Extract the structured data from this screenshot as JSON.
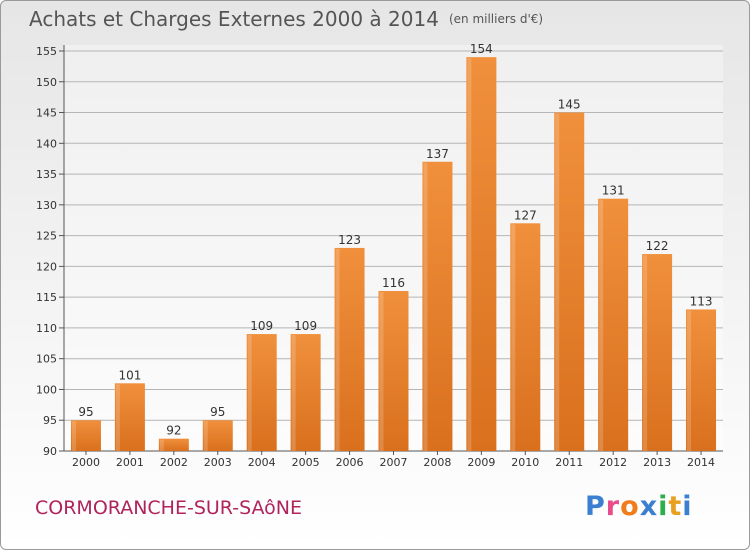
{
  "chart_data": {
    "type": "bar",
    "title": "Achats et Charges Externes 2000 à 2014",
    "subtitle": "(en milliers d'€)",
    "categories": [
      "2000",
      "2001",
      "2002",
      "2003",
      "2004",
      "2005",
      "2006",
      "2007",
      "2008",
      "2009",
      "2010",
      "2011",
      "2012",
      "2013",
      "2014"
    ],
    "values": [
      95,
      101,
      92,
      95,
      109,
      109,
      123,
      116,
      137,
      154,
      127,
      145,
      131,
      122,
      113
    ],
    "ylim": [
      90,
      155
    ],
    "yticks": [
      90,
      95,
      100,
      105,
      110,
      115,
      120,
      125,
      130,
      135,
      140,
      145,
      150,
      155
    ],
    "grid": true,
    "bar_color": "#f0903c",
    "bar_color_dark": "#d9701e"
  },
  "footer": {
    "commune": "CORMORANCHE-SUR-SAôNE",
    "logo": "Proxiti",
    "logo_colors": [
      "#3a7fd0",
      "#e84c8a",
      "#f07c1c",
      "#3a7fd0",
      "#2eae4a",
      "#e8a020",
      "#3a7fd0"
    ]
  }
}
